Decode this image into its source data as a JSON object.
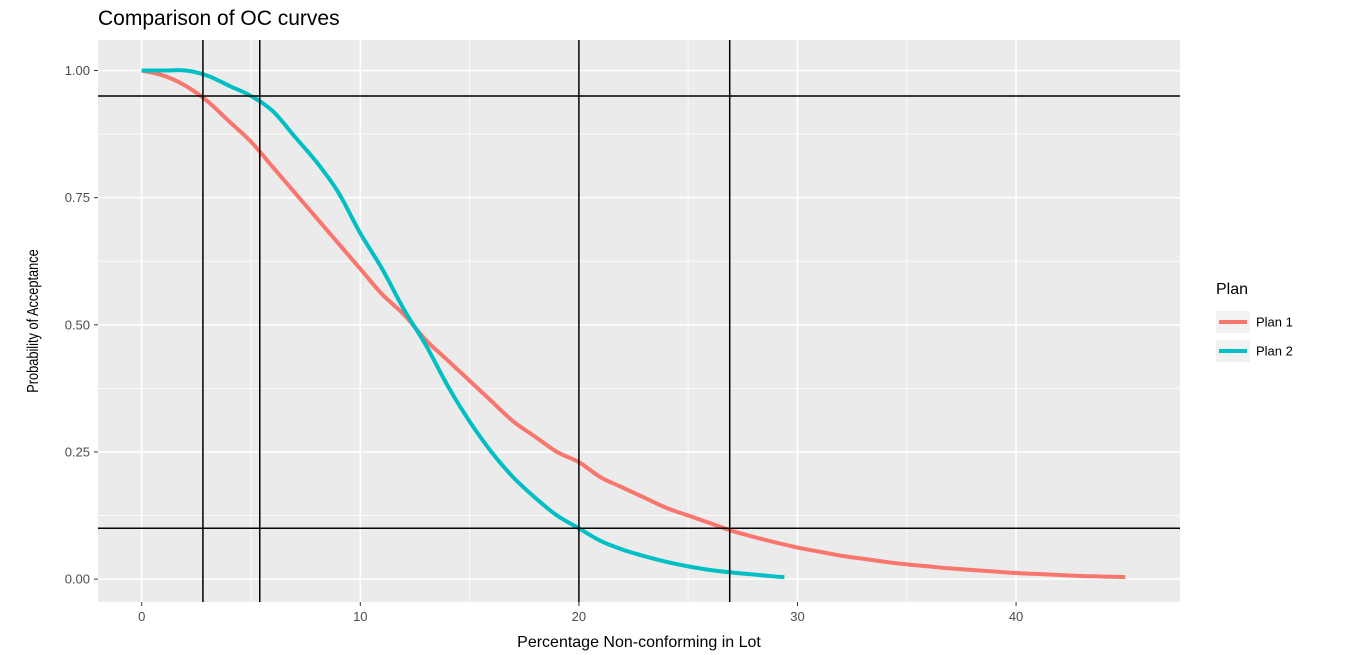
{
  "chart_data": {
    "type": "line",
    "title": "Comparison of OC curves",
    "xlabel": "Percentage Non-conforming in Lot",
    "ylabel": "Probability of Acceptance",
    "xlim": [
      -2,
      47.5
    ],
    "ylim": [
      -0.045,
      1.06
    ],
    "x_ticks": [
      0,
      10,
      20,
      30,
      40
    ],
    "x_tick_labels": [
      "0",
      "10",
      "20",
      "30",
      "40"
    ],
    "y_ticks": [
      0,
      0.25,
      0.5,
      0.75,
      1.0
    ],
    "y_tick_labels": [
      "0.00",
      "0.25",
      "0.50",
      "0.75",
      "1.00"
    ],
    "grid": true,
    "legend": {
      "title": "Plan",
      "placement": "right"
    },
    "colors": {
      "panel": "#ebebeb",
      "grid": "#ffffff",
      "reference_lines": "#000000"
    },
    "reference_lines": {
      "vertical": [
        2.8,
        5.4,
        20.0,
        26.9
      ],
      "horizontal": [
        0.95,
        0.1
      ]
    },
    "series": [
      {
        "name": "Plan 1",
        "color": "#f8766d",
        "x": [
          0,
          1,
          2,
          3,
          4,
          5,
          6,
          7,
          8,
          9,
          10,
          11,
          12,
          13,
          14,
          15,
          16,
          17,
          18,
          19,
          20,
          21,
          22,
          23,
          24,
          25,
          26,
          27,
          28,
          29,
          30,
          31,
          32,
          33,
          34,
          35,
          36,
          37,
          38,
          39,
          40,
          41,
          42,
          43,
          44,
          45
        ],
        "values": [
          1.0,
          0.99,
          0.97,
          0.94,
          0.9,
          0.86,
          0.81,
          0.76,
          0.71,
          0.66,
          0.61,
          0.56,
          0.52,
          0.47,
          0.43,
          0.39,
          0.35,
          0.31,
          0.28,
          0.25,
          0.23,
          0.2,
          0.18,
          0.16,
          0.14,
          0.125,
          0.11,
          0.095,
          0.083,
          0.072,
          0.062,
          0.054,
          0.046,
          0.04,
          0.034,
          0.029,
          0.025,
          0.021,
          0.018,
          0.015,
          0.012,
          0.01,
          0.008,
          0.006,
          0.005,
          0.004
        ]
      },
      {
        "name": "Plan 2",
        "color": "#00bfc4",
        "x": [
          0,
          1,
          2,
          3,
          4,
          5,
          6,
          7,
          8,
          9,
          10,
          11,
          12,
          13,
          14,
          15,
          16,
          17,
          18,
          19,
          20,
          21,
          22,
          23,
          24,
          25,
          26,
          27,
          28,
          29,
          29.4
        ],
        "values": [
          1.0,
          1.0,
          1.0,
          0.99,
          0.97,
          0.95,
          0.92,
          0.87,
          0.82,
          0.76,
          0.68,
          0.61,
          0.53,
          0.46,
          0.38,
          0.31,
          0.25,
          0.2,
          0.16,
          0.125,
          0.1,
          0.075,
          0.058,
          0.045,
          0.034,
          0.025,
          0.018,
          0.013,
          0.009,
          0.005,
          0.004
        ]
      }
    ]
  }
}
